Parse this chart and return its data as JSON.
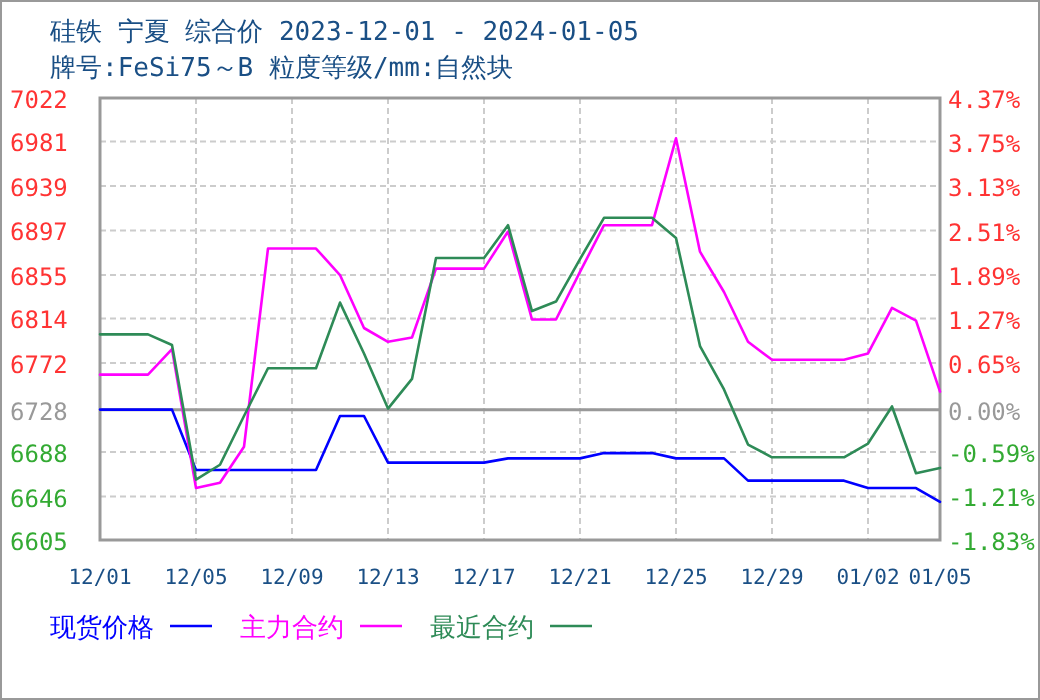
{
  "chart_data": {
    "type": "line",
    "title": "硅铁 宁夏 综合价 2023-12-01 - 2024-01-05",
    "subtitle": "牌号:FeSi75～B 粒度等级/mm:自然块",
    "x": [
      "2023-12-01",
      "2023-12-02",
      "2023-12-03",
      "2023-12-04",
      "2023-12-05",
      "2023-12-06",
      "2023-12-07",
      "2023-12-08",
      "2023-12-09",
      "2023-12-10",
      "2023-12-11",
      "2023-12-12",
      "2023-12-13",
      "2023-12-14",
      "2023-12-15",
      "2023-12-16",
      "2023-12-17",
      "2023-12-18",
      "2023-12-19",
      "2023-12-20",
      "2023-12-21",
      "2023-12-22",
      "2023-12-23",
      "2023-12-24",
      "2023-12-25",
      "2023-12-26",
      "2023-12-27",
      "2023-12-28",
      "2023-12-29",
      "2023-12-30",
      "2023-12-31",
      "2024-01-01",
      "2024-01-02",
      "2024-01-03",
      "2024-01-04",
      "2024-01-05"
    ],
    "series": [
      {
        "name": "现货价格",
        "color": "#0000ff",
        "values": [
          6728,
          6728,
          6728,
          6728,
          6671,
          6671,
          6671,
          6671,
          6671,
          6671,
          6722,
          6722,
          6678,
          6678,
          6678,
          6678,
          6678,
          6682,
          6682,
          6682,
          6682,
          6687,
          6687,
          6687,
          6682,
          6682,
          6682,
          6661,
          6661,
          6661,
          6661,
          6661,
          6654,
          6654,
          6654,
          6641
        ]
      },
      {
        "name": "主力合约",
        "color": "#ff00ff",
        "values": [
          6761,
          6761,
          6761,
          6785,
          6654,
          6659,
          6693,
          6880,
          6880,
          6880,
          6855,
          6805,
          6792,
          6796,
          6861,
          6861,
          6861,
          6896,
          6813,
          6813,
          6858,
          6902,
          6902,
          6902,
          6984,
          6877,
          6839,
          6792,
          6775,
          6775,
          6775,
          6775,
          6781,
          6824,
          6812,
          6745
        ]
      },
      {
        "name": "最近合约",
        "color": "#2e8b57",
        "values": [
          6799,
          6799,
          6799,
          6789,
          6662,
          6676,
          6722,
          6767,
          6767,
          6767,
          6829,
          6781,
          6729,
          6757,
          6871,
          6871,
          6871,
          6902,
          6821,
          6830,
          6870,
          6909,
          6909,
          6909,
          6890,
          6788,
          6747,
          6695,
          6683,
          6683,
          6683,
          6683,
          6696,
          6731,
          6668,
          6673
        ]
      }
    ],
    "xlim": [
      "2023-12-01",
      "2024-01-05"
    ],
    "xticks": [
      {
        "value": "2023-12-01",
        "label": "12/01"
      },
      {
        "value": "2023-12-05",
        "label": "12/05"
      },
      {
        "value": "2023-12-09",
        "label": "12/09"
      },
      {
        "value": "2023-12-13",
        "label": "12/13"
      },
      {
        "value": "2023-12-17",
        "label": "12/17"
      },
      {
        "value": "2023-12-21",
        "label": "12/21"
      },
      {
        "value": "2023-12-25",
        "label": "12/25"
      },
      {
        "value": "2023-12-29",
        "label": "12/29"
      },
      {
        "value": "2024-01-02",
        "label": "01/02"
      },
      {
        "value": "2024-01-05",
        "label": "01/05"
      }
    ],
    "ylim": [
      6605,
      7022
    ],
    "yticks": [
      6605,
      6646,
      6688,
      6728,
      6772,
      6814,
      6855,
      6897,
      6939,
      6981,
      7022
    ],
    "y2lim": [
      -1.83,
      4.37
    ],
    "y2ticks": [
      {
        "value": -1.83,
        "label": "-1.83%"
      },
      {
        "value": -1.21,
        "label": "-1.21%"
      },
      {
        "value": -0.59,
        "label": "-0.59%"
      },
      {
        "value": 0,
        "label": "0.00%"
      },
      {
        "value": 0.65,
        "label": "0.65%"
      },
      {
        "value": 1.27,
        "label": "1.27%"
      },
      {
        "value": 1.89,
        "label": "1.89%"
      },
      {
        "value": 2.51,
        "label": "2.51%"
      },
      {
        "value": 3.13,
        "label": "3.13%"
      },
      {
        "value": 3.75,
        "label": "3.75%"
      },
      {
        "value": 4.37,
        "label": "4.37%"
      }
    ],
    "ref_lines": [
      {
        "axis": "y",
        "value": 6728,
        "color": "#999999"
      }
    ],
    "grid": true,
    "legend": "bottom",
    "marker": "none",
    "line_style": "solid"
  }
}
